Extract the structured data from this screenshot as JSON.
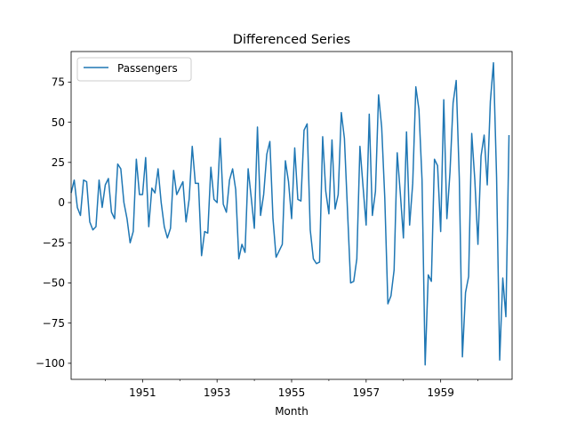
{
  "chart_data": {
    "type": "line",
    "title": "Differenced Series",
    "xlabel": "Month",
    "ylabel": "",
    "x_start": "1949-02",
    "x_end": "1960-12",
    "xlim": [
      "1949-02",
      "1960-12"
    ],
    "ylim": [
      -110,
      94
    ],
    "xticks": [
      {
        "value": "1951-01",
        "label": "1951"
      },
      {
        "value": "1953-01",
        "label": "1953"
      },
      {
        "value": "1955-01",
        "label": "1955"
      },
      {
        "value": "1957-01",
        "label": "1957"
      },
      {
        "value": "1959-01",
        "label": "1959"
      }
    ],
    "yticks": [
      {
        "value": 75,
        "label": "75"
      },
      {
        "value": 50,
        "label": "50"
      },
      {
        "value": 25,
        "label": "25"
      },
      {
        "value": 0,
        "label": "0"
      },
      {
        "value": -25,
        "label": "−25"
      },
      {
        "value": -50,
        "label": "−50"
      },
      {
        "value": -75,
        "label": "−75"
      },
      {
        "value": -100,
        "label": "−100"
      }
    ],
    "grid": false,
    "legend": {
      "position": "upper-left",
      "entries": [
        "Passengers"
      ]
    },
    "series": [
      {
        "name": "Passengers",
        "color": "#1f77b4",
        "values": [
          6,
          14,
          -3,
          -8,
          14,
          13,
          -12,
          -17,
          -15,
          14,
          -3,
          11,
          15,
          -6,
          -10,
          24,
          21,
          0,
          -10,
          -25,
          -18,
          27,
          5,
          5,
          28,
          -15,
          9,
          6,
          21,
          0,
          -15,
          -22,
          -16,
          20,
          5,
          9,
          13,
          -12,
          2,
          35,
          12,
          12,
          -33,
          -18,
          -19,
          22,
          2,
          0,
          40,
          -1,
          -6,
          14,
          21,
          8,
          -35,
          -26,
          -31,
          21,
          3,
          -16,
          47,
          -8,
          5,
          30,
          38,
          -10,
          -34,
          -30,
          -26,
          26,
          13,
          -10,
          34,
          2,
          1,
          45,
          49,
          -17,
          -35,
          -38,
          -37,
          41,
          7,
          -7,
          39,
          -4,
          5,
          56,
          40,
          -5,
          -50,
          -49,
          -35,
          35,
          10,
          -14,
          55,
          -8,
          7,
          67,
          47,
          3,
          -63,
          -58,
          -42,
          31,
          6,
          -22,
          44,
          -14,
          12,
          72,
          58,
          14,
          -101,
          -45,
          -49,
          27,
          23,
          -18,
          64,
          -10,
          19,
          62,
          76,
          15,
          -96,
          -56,
          -46,
          43,
          14,
          -26,
          29,
          42,
          11,
          63,
          87,
          16,
          -98,
          -47,
          -71,
          42
        ]
      }
    ]
  }
}
